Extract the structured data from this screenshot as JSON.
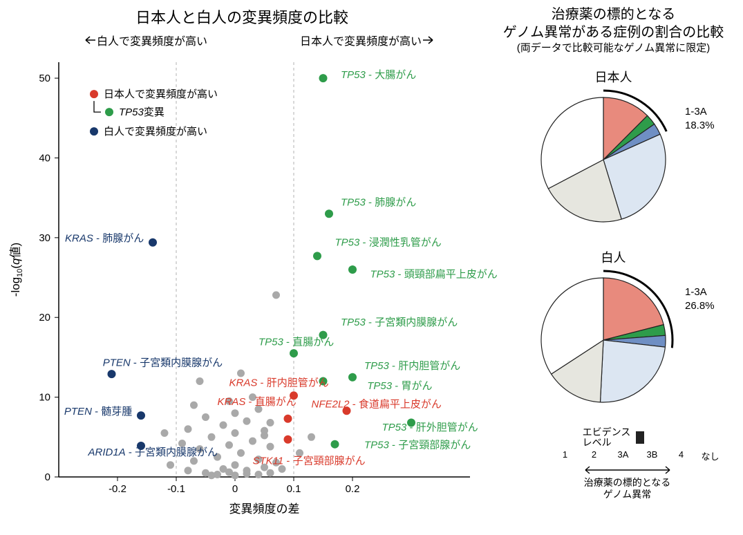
{
  "scatter": {
    "title": "日本人と白人の変異頻度の比較",
    "arrow_left": "白人で変異頻度が高い",
    "arrow_right": "日本人で変異頻度が高い",
    "legend": {
      "jp_high": "日本人で変異頻度が高い",
      "tp53_sub": "TP53変異",
      "wh_high": "白人で変異頻度が高い"
    },
    "x_label": "変異頻度の差",
    "y_label": "-log₁₀(q値)",
    "xlim": [
      -0.3,
      0.4
    ],
    "ylim": [
      0,
      52
    ],
    "xticks": [
      -0.2,
      -0.1,
      0,
      0.1,
      0.2
    ],
    "yticks": [
      0,
      10,
      20,
      30,
      40,
      50
    ],
    "vlines": [
      -0.1,
      0.1
    ],
    "colors": {
      "red": "#d93a2b",
      "green": "#2e9c4a",
      "blue": "#18386b",
      "gray": "#a9a9a9",
      "grid": "#cccccc",
      "axis": "#000000"
    },
    "labeled_points": [
      {
        "x": 0.15,
        "y": 50.0,
        "c": "green",
        "label": "TP53 - 大腸がん",
        "lx": 0.18,
        "ly": 50,
        "anchor": "start"
      },
      {
        "x": 0.16,
        "y": 33.0,
        "c": "green",
        "label": "TP53 - 肺腺がん",
        "lx": 0.18,
        "ly": 34,
        "anchor": "start"
      },
      {
        "x": 0.14,
        "y": 27.7,
        "c": "green",
        "label": "TP53 - 浸潤性乳管がん",
        "lx": 0.17,
        "ly": 29,
        "anchor": "start"
      },
      {
        "x": 0.2,
        "y": 26.0,
        "c": "green",
        "label": "TP53 - 頭頸部扁平上皮がん",
        "lx": 0.23,
        "ly": 25,
        "anchor": "start"
      },
      {
        "x": 0.15,
        "y": 17.8,
        "c": "green",
        "label": "TP53 - 子宮類内膜腺がん",
        "lx": 0.18,
        "ly": 19,
        "anchor": "start"
      },
      {
        "x": 0.1,
        "y": 15.5,
        "c": "green",
        "label": "TP53 - 直腸がん",
        "lx": 0.04,
        "ly": 16.5,
        "anchor": "start"
      },
      {
        "x": 0.2,
        "y": 12.5,
        "c": "green",
        "label": "TP53 - 肝内胆管がん",
        "lx": 0.22,
        "ly": 13.5,
        "anchor": "start"
      },
      {
        "x": 0.15,
        "y": 12.0,
        "c": "green",
        "label": "TP53 - 胃がん",
        "lx": 0.225,
        "ly": 11,
        "anchor": "start"
      },
      {
        "x": 0.3,
        "y": 6.8,
        "c": "green",
        "label": "TP53 - 肝外胆管がん",
        "lx": 0.25,
        "ly": 5.8,
        "anchor": "start"
      },
      {
        "x": 0.17,
        "y": 4.1,
        "c": "green",
        "label": "TP53 - 子宮頸部腺がん",
        "lx": 0.22,
        "ly": 3.6,
        "anchor": "start"
      },
      {
        "x": 0.1,
        "y": 10.2,
        "c": "red",
        "label": "KRAS - 肝内胆管がん",
        "lx": -0.01,
        "ly": 11.4,
        "anchor": "start"
      },
      {
        "x": 0.09,
        "y": 7.3,
        "c": "red",
        "label": "KRAS - 直腸がん",
        "lx": -0.03,
        "ly": 9.0,
        "anchor": "start"
      },
      {
        "x": 0.19,
        "y": 8.3,
        "c": "red",
        "label": "NFE2L2 - 食道扁平上皮がん",
        "lx": 0.13,
        "ly": 8.7,
        "anchor": "start"
      },
      {
        "x": 0.09,
        "y": 4.7,
        "c": "red",
        "label": "STK11 - 子宮頸部腺がん",
        "lx": 0.03,
        "ly": 1.6,
        "anchor": "start"
      },
      {
        "x": -0.14,
        "y": 29.4,
        "c": "blue",
        "label": "KRAS - 肺腺がん",
        "lx": -0.155,
        "ly": 29.5,
        "anchor": "end"
      },
      {
        "x": -0.21,
        "y": 12.9,
        "c": "blue",
        "label": "PTEN - 子宮類内膜腺がん",
        "lx": -0.225,
        "ly": 13.9,
        "anchor": "start"
      },
      {
        "x": -0.16,
        "y": 7.7,
        "c": "blue",
        "label": "PTEN - 髄芽腫",
        "lx": -0.175,
        "ly": 7.8,
        "anchor": "end"
      },
      {
        "x": -0.16,
        "y": 3.9,
        "c": "blue",
        "label": "ARID1A - 子宮類内膜腺がん",
        "lx": -0.25,
        "ly": 2.7,
        "anchor": "start"
      }
    ],
    "gray_points": [
      {
        "x": -0.05,
        "y": 0.5
      },
      {
        "x": -0.02,
        "y": 1
      },
      {
        "x": 0.0,
        "y": 1.5
      },
      {
        "x": 0.02,
        "y": 0.8
      },
      {
        "x": 0.05,
        "y": 1.2
      },
      {
        "x": -0.07,
        "y": 2
      },
      {
        "x": -0.03,
        "y": 2.5
      },
      {
        "x": 0.01,
        "y": 3
      },
      {
        "x": 0.04,
        "y": 2.2
      },
      {
        "x": 0.07,
        "y": 1.8
      },
      {
        "x": -0.06,
        "y": 3.5
      },
      {
        "x": -0.01,
        "y": 4
      },
      {
        "x": 0.03,
        "y": 4.5
      },
      {
        "x": 0.06,
        "y": 3.8
      },
      {
        "x": -0.09,
        "y": 4.2
      },
      {
        "x": -0.04,
        "y": 5
      },
      {
        "x": 0.0,
        "y": 5.5
      },
      {
        "x": 0.05,
        "y": 5.2
      },
      {
        "x": -0.08,
        "y": 6
      },
      {
        "x": -0.02,
        "y": 6.5
      },
      {
        "x": 0.02,
        "y": 7
      },
      {
        "x": 0.06,
        "y": 6.8
      },
      {
        "x": -0.05,
        "y": 7.5
      },
      {
        "x": 0.0,
        "y": 8
      },
      {
        "x": 0.04,
        "y": 8.5
      },
      {
        "x": -0.07,
        "y": 9
      },
      {
        "x": -0.01,
        "y": 9.5
      },
      {
        "x": 0.03,
        "y": 10
      },
      {
        "x": 0.07,
        "y": 22.8
      },
      {
        "x": -0.06,
        "y": 12
      },
      {
        "x": 0.01,
        "y": 13
      },
      {
        "x": 0.05,
        "y": 5.8
      },
      {
        "x": -0.03,
        "y": 0.3
      },
      {
        "x": 0.0,
        "y": 0.2
      },
      {
        "x": 0.02,
        "y": 0.4
      },
      {
        "x": -0.01,
        "y": 0.6
      },
      {
        "x": 0.04,
        "y": 0.3
      },
      {
        "x": -0.04,
        "y": 0.2
      },
      {
        "x": 0.06,
        "y": 0.5
      },
      {
        "x": -0.08,
        "y": 0.8
      },
      {
        "x": -0.11,
        "y": 1.5
      },
      {
        "x": -0.12,
        "y": 5.5
      },
      {
        "x": 0.11,
        "y": 3
      },
      {
        "x": 0.13,
        "y": 5
      },
      {
        "x": 0.08,
        "y": 1
      }
    ]
  },
  "pies": {
    "title_line1": "治療薬の標的となる",
    "title_line2": "ゲノム異常がある症例の割合の比較",
    "title_sub": "(両データで比較可能なゲノム異常に限定)",
    "jp": {
      "label": "日本人",
      "callout": "1-3A\n18.3%",
      "slices": [
        {
          "v": 12.5,
          "c": "#e88a7d"
        },
        {
          "v": 2.8,
          "c": "#2e9c4a"
        },
        {
          "v": 3.0,
          "c": "#6f8fc4"
        },
        {
          "v": 27.0,
          "c": "#dce6f2"
        },
        {
          "v": 22.0,
          "c": "#e6e6df"
        },
        {
          "v": 32.7,
          "c": "#ffffff"
        }
      ]
    },
    "wh": {
      "label": "白人",
      "callout": "1-3A\n26.8%",
      "slices": [
        {
          "v": 21.0,
          "c": "#e88a7d"
        },
        {
          "v": 2.8,
          "c": "#2e9c4a"
        },
        {
          "v": 3.0,
          "c": "#6f8fc4"
        },
        {
          "v": 24.0,
          "c": "#dce6f2"
        },
        {
          "v": 15.0,
          "c": "#e6e6df"
        },
        {
          "v": 34.2,
          "c": "#ffffff"
        }
      ]
    },
    "legend": {
      "title": "エビデンス\nレベル",
      "items": [
        {
          "label": "1",
          "c": "#e88a7d"
        },
        {
          "label": "2",
          "c": "#2e9c4a"
        },
        {
          "label": "3A",
          "c": "#6f8fc4"
        },
        {
          "label": "3B",
          "c": "#dce6f2"
        },
        {
          "label": "4",
          "c": "#e6e6df"
        },
        {
          "label": "なし",
          "c": "#ffffff"
        }
      ],
      "arrow_label": "治療薬の標的となる\nゲノム異常"
    }
  }
}
